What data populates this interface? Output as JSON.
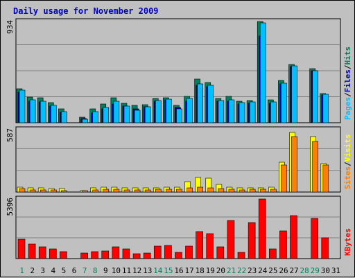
{
  "title": "Daily usage for November 2009",
  "colors": {
    "background": "#c0c0c0",
    "title": "#0000c0",
    "hits": "#00805c",
    "files": "#0000c0",
    "pages": "#00c0ff",
    "visits": "#ffff00",
    "sites": "#ff8000",
    "kbytes": "#ff0000",
    "weekend": "#00805c",
    "weekday": "#000000"
  },
  "chart_data": {
    "type": "bar",
    "categories": [
      "1",
      "2",
      "3",
      "4",
      "5",
      "6",
      "7",
      "8",
      "9",
      "10",
      "11",
      "12",
      "13",
      "14",
      "15",
      "16",
      "17",
      "18",
      "19",
      "20",
      "21",
      "22",
      "23",
      "24",
      "25",
      "26",
      "27",
      "28",
      "29",
      "30",
      "31"
    ],
    "weekend_days": [
      "1",
      "7",
      "8",
      "14",
      "15",
      "21",
      "22",
      "28",
      "29"
    ],
    "panels": [
      {
        "id": "hits_files_pages",
        "scale_label": "934",
        "ymax": 934,
        "legend": [
          "Pages",
          "/",
          "Files",
          "/",
          "Hits"
        ],
        "series": [
          {
            "name": "Hits",
            "values": [
              312,
              238,
              232,
              184,
              126,
              0,
              52,
              126,
              172,
              232,
              180,
              160,
              168,
              224,
              232,
              162,
              246,
              400,
              374,
              224,
              240,
              200,
              204,
              934,
              210,
              390,
              538,
              0,
              500,
              268,
              0
            ]
          },
          {
            "name": "Files",
            "values": [
              280,
              200,
              192,
              156,
              96,
              0,
              40,
              88,
              128,
              172,
              156,
              126,
              150,
              200,
              208,
              140,
              200,
              348,
              330,
              200,
              200,
              170,
              178,
              800,
              178,
              356,
              520,
              0,
              480,
              256,
              0
            ]
          },
          {
            "name": "Pages",
            "values": [
              300,
              212,
              200,
              160,
              104,
              0,
              32,
              100,
              140,
              200,
              156,
              112,
              150,
              204,
              216,
              130,
              226,
              360,
              346,
              206,
              210,
              184,
              190,
              920,
              192,
              362,
              524,
              0,
              480,
              260,
              0
            ]
          }
        ]
      },
      {
        "id": "sites_visits",
        "scale_label": "587",
        "ymax": 587,
        "legend": [
          "Sites",
          "/",
          "Visits"
        ],
        "series": [
          {
            "name": "Visits",
            "values": [
              48,
              38,
              36,
              32,
              32,
              0,
              16,
              40,
              48,
              48,
              40,
              40,
              40,
              40,
              48,
              48,
              96,
              136,
              128,
              72,
              48,
              40,
              40,
              40,
              48,
              280,
              560,
              0,
              524,
              270,
              0
            ]
          },
          {
            "name": "Sites",
            "values": [
              30,
              22,
              22,
              20,
              16,
              0,
              12,
              22,
              24,
              26,
              22,
              22,
              22,
              24,
              24,
              24,
              38,
              44,
              42,
              34,
              26,
              22,
              24,
              24,
              28,
              252,
              520,
              0,
              478,
              254,
              0
            ]
          }
        ]
      },
      {
        "id": "kbytes",
        "scale_label": "5396",
        "ymax": 5396,
        "legend": [
          "KBytes"
        ],
        "series": [
          {
            "name": "KBytes",
            "values": [
              1770,
              1300,
              1060,
              870,
              650,
              0,
              500,
              620,
              690,
              1080,
              860,
              440,
              480,
              1120,
              1190,
              560,
              1160,
              2430,
              2250,
              1070,
              3470,
              590,
              3260,
              5396,
              860,
              2540,
              3880,
              0,
              3640,
              1900,
              0
            ]
          }
        ]
      }
    ]
  }
}
